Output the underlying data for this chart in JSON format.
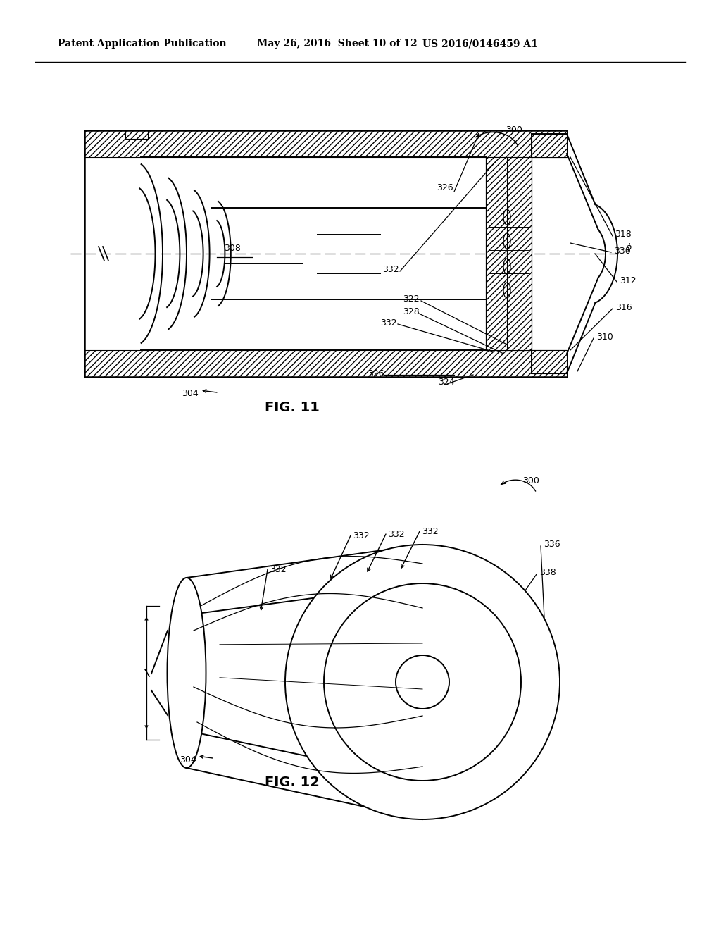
{
  "bg_color": "#ffffff",
  "line_color": "#000000",
  "header_left": "Patent Application Publication",
  "header_mid": "May 26, 2016  Sheet 10 of 12",
  "header_right": "US 2016/0146459 A1",
  "fig11_label": "FIG. 11",
  "fig12_label": "FIG. 12",
  "header_fontsize": 10,
  "label_fontsize": 9,
  "figlabel_fontsize": 14
}
